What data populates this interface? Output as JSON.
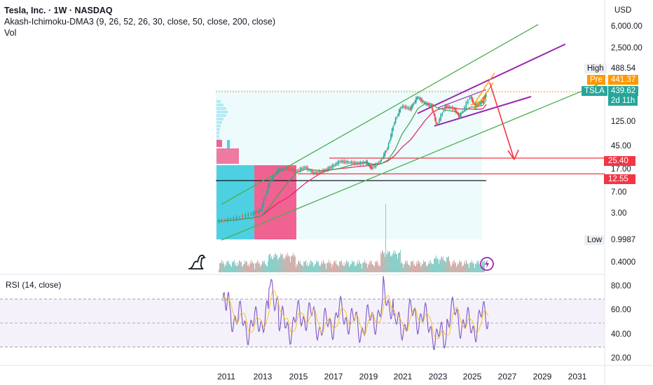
{
  "header": {
    "title": "Tesla, Inc. · 1W · NASDAQ",
    "indicator": "Akash-Ichimoku-DMA3 (9, 26, 52, 26, 30, close, 50, close, 200, close)",
    "volume": "Vol",
    "rsi": "RSI (14, close)"
  },
  "currency": "USD",
  "price_tags": {
    "high_label": "High",
    "high_value": "488.54",
    "pre_label": "Pre",
    "pre_value": "441.37",
    "ticker_label": "TSLA",
    "ticker_value": "439.62",
    "ticker_time": "2d 11h",
    "level1": "25.40",
    "level2": "12.55",
    "low_label": "Low",
    "low_value": "0.9987"
  },
  "colors": {
    "up": "#26a69a",
    "down": "#ef5350",
    "rsi": "#7e57c2",
    "channel_green": "#4caf50",
    "channel_purple": "#9c27b0",
    "arrow_red": "#f23645",
    "orange": "#ff9800",
    "profile_cyan": "#4dd0e1",
    "profile_pink": "#f06292"
  },
  "chart_data": [
    {
      "type": "line",
      "title": "Tesla, Inc. · 1W · NASDAQ",
      "y_scale": "log",
      "x_ticks": [
        "2011",
        "2013",
        "2015",
        "2017",
        "2019",
        "2021",
        "2023",
        "2025",
        "2027",
        "2029",
        "2031"
      ],
      "y_ticks": [
        "6,000.00",
        "2,500.00",
        "125.00",
        "45.00",
        "17.00",
        "7.00",
        "3.00",
        "0.4000"
      ],
      "series": [
        {
          "name": "TSLA",
          "points": [
            [
              2010.5,
              1.5
            ],
            [
              2011.5,
              1.7
            ],
            [
              2012.5,
              2.1
            ],
            [
              2013.0,
              2.5
            ],
            [
              2013.5,
              9.0
            ],
            [
              2014.0,
              15
            ],
            [
              2014.5,
              16
            ],
            [
              2015.0,
              14
            ],
            [
              2015.5,
              17
            ],
            [
              2016.0,
              13
            ],
            [
              2016.5,
              14
            ],
            [
              2017.0,
              17
            ],
            [
              2017.5,
              22
            ],
            [
              2018.0,
              21
            ],
            [
              2018.5,
              20
            ],
            [
              2019.0,
              21
            ],
            [
              2019.3,
              16
            ],
            [
              2019.8,
              22
            ],
            [
              2020.2,
              40
            ],
            [
              2020.6,
              130
            ],
            [
              2021.0,
              260
            ],
            [
              2021.5,
              230
            ],
            [
              2021.9,
              390
            ],
            [
              2022.3,
              300
            ],
            [
              2022.7,
              260
            ],
            [
              2023.0,
              110
            ],
            [
              2023.5,
              260
            ],
            [
              2024.0,
              230
            ],
            [
              2024.3,
              160
            ],
            [
              2024.9,
              400
            ],
            [
              2025.2,
              260
            ],
            [
              2025.6,
              320
            ],
            [
              2025.8,
              440
            ]
          ]
        }
      ],
      "horizontal_levels": [
        25.4,
        12.55
      ],
      "high": 488.54,
      "low": 0.9987,
      "last": 439.62,
      "premarket": 441.37
    },
    {
      "type": "bar",
      "title": "Vol",
      "note": "weekly volume histogram"
    },
    {
      "type": "line",
      "title": "RSI (14, close)",
      "y_ticks": [
        "80.00",
        "60.00",
        "40.00",
        "20.00"
      ],
      "bands": [
        70,
        50,
        30
      ],
      "ylim": [
        20,
        90
      ]
    }
  ]
}
